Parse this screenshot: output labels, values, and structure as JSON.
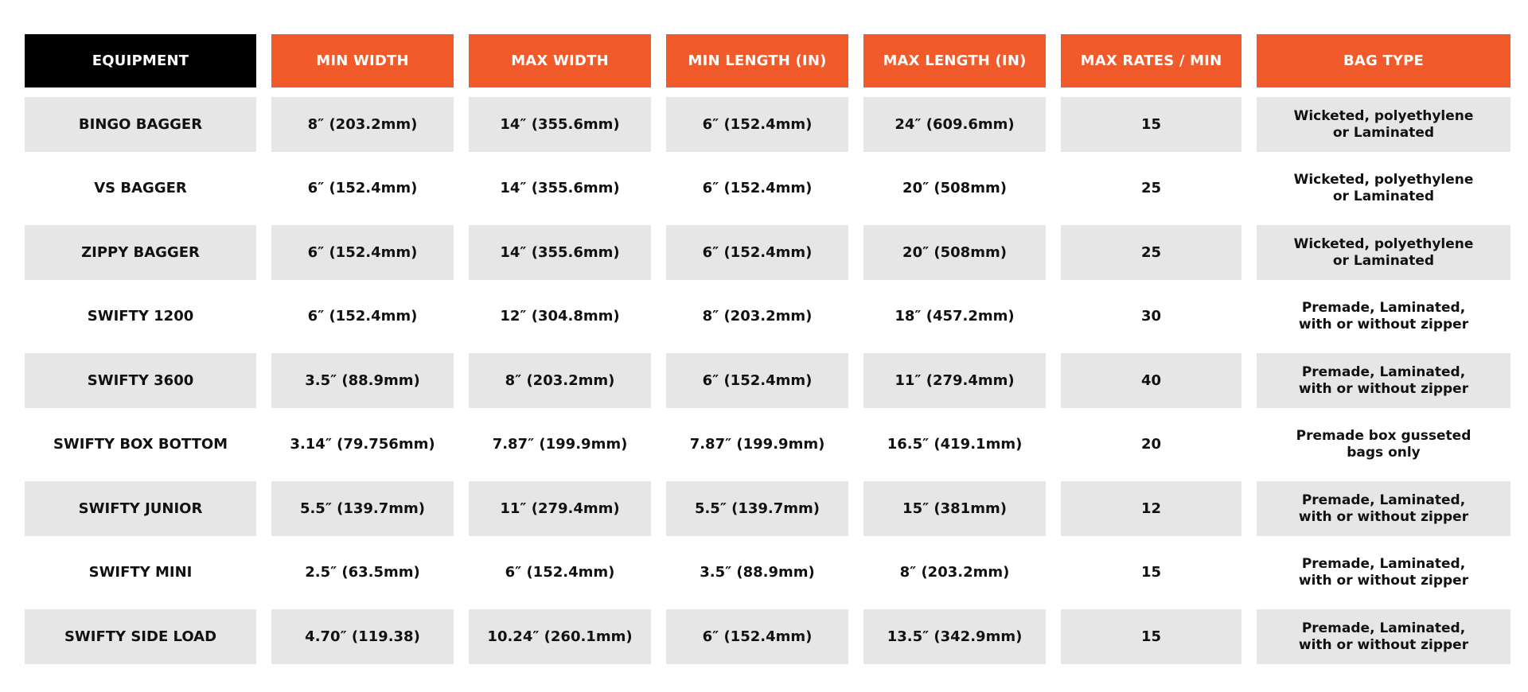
{
  "colors": {
    "header_accent": "#f15a2b",
    "header_first": "#000000",
    "row_stripe": "#e6e6e6"
  },
  "headers": [
    "EQUIPMENT",
    "MIN WIDTH",
    "MAX WIDTH",
    "MIN LENGTH (IN)",
    "MAX LENGTH (IN)",
    "MAX RATES / MIN",
    "BAG TYPE"
  ],
  "rows": [
    [
      "BINGO BAGGER",
      "8″ (203.2mm)",
      "14″ (355.6mm)",
      "6″ (152.4mm)",
      "24″ (609.6mm)",
      "15",
      "Wicketed, polyethylene",
      "or Laminated"
    ],
    [
      "VS BAGGER",
      "6″ (152.4mm)",
      "14″ (355.6mm)",
      "6″ (152.4mm)",
      "20″ (508mm)",
      "25",
      "Wicketed, polyethylene",
      "or Laminated"
    ],
    [
      "ZIPPY BAGGER",
      "6″ (152.4mm)",
      "14″ (355.6mm)",
      "6″ (152.4mm)",
      "20″ (508mm)",
      "25",
      "Wicketed, polyethylene",
      "or Laminated"
    ],
    [
      "SWIFTY 1200",
      "6″ (152.4mm)",
      "12″ (304.8mm)",
      "8″ (203.2mm)",
      "18″ (457.2mm)",
      "30",
      "Premade, Laminated,",
      "with or without zipper"
    ],
    [
      "SWIFTY 3600",
      "3.5″ (88.9mm)",
      "8″ (203.2mm)",
      "6″ (152.4mm)",
      "11″ (279.4mm)",
      "40",
      "Premade, Laminated,",
      "with or without zipper"
    ],
    [
      "SWIFTY BOX BOTTOM",
      "3.14″ (79.756mm)",
      "7.87″ (199.9mm)",
      "7.87″ (199.9mm)",
      "16.5″ (419.1mm)",
      "20",
      "Premade box gusseted",
      "bags only"
    ],
    [
      "SWIFTY JUNIOR",
      "5.5″ (139.7mm)",
      "11″ (279.4mm)",
      "5.5″ (139.7mm)",
      "15″ (381mm)",
      "12",
      "Premade, Laminated,",
      "with or without zipper"
    ],
    [
      "SWIFTY MINI",
      "2.5″ (63.5mm)",
      "6″ (152.4mm)",
      "3.5″ (88.9mm)",
      "8″ (203.2mm)",
      "15",
      "Premade, Laminated,",
      "with or without zipper"
    ],
    [
      "SWIFTY SIDE LOAD",
      "4.70″ (119.38)",
      "10.24″ (260.1mm)",
      "6″ (152.4mm)",
      "13.5″ (342.9mm)",
      "15",
      "Premade, Laminated,",
      "with or without zipper"
    ]
  ]
}
